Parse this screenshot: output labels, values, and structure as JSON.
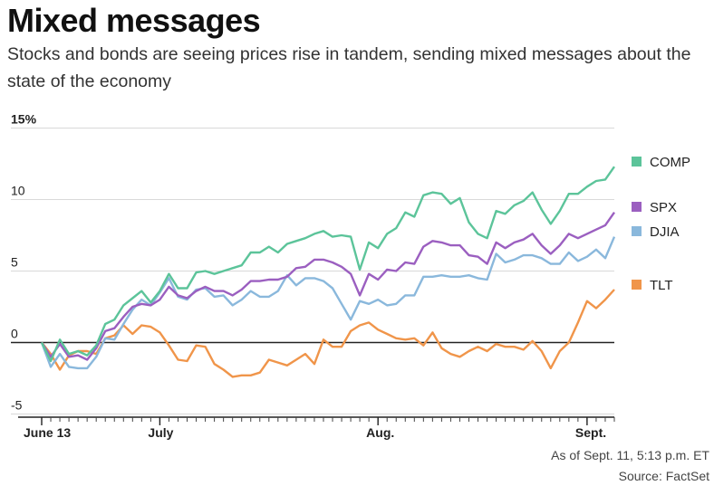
{
  "title": "Mixed messages",
  "subtitle": "Stocks and bonds are seeing prices rise in tandem, sending mixed messages about the state of the economy",
  "as_of": "As of Sept. 11, 5:13 p.m. ET",
  "source": "Source: FactSet",
  "colors": {
    "COMP": "#5cc49a",
    "SPX": "#9b5fc0",
    "DJIA": "#8ab8dc",
    "TLT": "#f0954a"
  },
  "chart_data": {
    "type": "line",
    "ylim": [
      -5,
      15
    ],
    "y_ticks": [
      {
        "value": 15,
        "label": "15%"
      },
      {
        "value": 10,
        "label": "10"
      },
      {
        "value": 5,
        "label": "5"
      },
      {
        "value": 0,
        "label": "0"
      },
      {
        "value": -5,
        "label": "-5"
      }
    ],
    "x_labels": [
      {
        "index": 0,
        "label": "June 13"
      },
      {
        "index": 13,
        "label": "July"
      },
      {
        "index": 37,
        "label": "Aug."
      },
      {
        "index": 60,
        "label": "Sept."
      }
    ],
    "legend": [
      "COMP",
      "SPX",
      "DJIA",
      "TLT"
    ],
    "series": [
      {
        "name": "COMP",
        "values": [
          0,
          -1.3,
          0.2,
          -0.8,
          -0.6,
          -0.9,
          -0.2,
          1.3,
          1.6,
          2.6,
          3.1,
          3.6,
          2.8,
          3.6,
          4.8,
          3.8,
          3.8,
          4.9,
          5.0,
          4.8,
          5.0,
          5.2,
          5.4,
          6.3,
          6.3,
          6.7,
          6.3,
          6.9,
          7.1,
          7.3,
          7.6,
          7.8,
          7.4,
          7.5,
          7.4,
          5.1,
          7.0,
          6.6,
          7.6,
          8.0,
          9.1,
          8.8,
          10.3,
          10.5,
          10.4,
          9.7,
          10.1,
          8.4,
          7.6,
          7.3,
          9.2,
          9.0,
          9.6,
          9.9,
          10.5,
          9.3,
          8.3,
          9.2,
          10.4,
          10.4,
          10.9,
          11.3,
          11.4,
          12.3
        ]
      },
      {
        "name": "SPX",
        "values": [
          0,
          -1.0,
          -0.1,
          -1.0,
          -0.9,
          -1.2,
          -0.4,
          0.8,
          1.0,
          1.8,
          2.5,
          2.7,
          2.6,
          3.0,
          3.9,
          3.3,
          3.1,
          3.6,
          3.9,
          3.6,
          3.6,
          3.3,
          3.7,
          4.3,
          4.3,
          4.4,
          4.4,
          4.6,
          5.2,
          5.3,
          5.8,
          5.8,
          5.6,
          5.3,
          4.8,
          3.3,
          4.8,
          4.4,
          5.1,
          5.0,
          5.6,
          5.5,
          6.7,
          7.1,
          7.0,
          6.8,
          6.8,
          6.1,
          6.0,
          5.5,
          7.0,
          6.6,
          7.0,
          7.2,
          7.6,
          6.8,
          6.2,
          6.8,
          7.6,
          7.3,
          7.6,
          7.9,
          8.2,
          9.1
        ]
      },
      {
        "name": "DJIA",
        "values": [
          0,
          -1.7,
          -0.8,
          -1.7,
          -1.8,
          -1.8,
          -1.0,
          0.3,
          0.2,
          1.3,
          2.3,
          3.0,
          2.6,
          3.5,
          4.5,
          3.2,
          3.0,
          3.7,
          3.8,
          3.2,
          3.3,
          2.6,
          3.0,
          3.6,
          3.2,
          3.2,
          3.6,
          4.7,
          4.0,
          4.5,
          4.5,
          4.3,
          3.8,
          2.7,
          1.6,
          2.9,
          2.7,
          3.0,
          2.6,
          2.7,
          3.3,
          3.3,
          4.6,
          4.6,
          4.7,
          4.6,
          4.6,
          4.7,
          4.5,
          4.4,
          6.2,
          5.6,
          5.8,
          6.1,
          6.1,
          5.9,
          5.5,
          5.5,
          6.3,
          5.7,
          6.0,
          6.5,
          5.9,
          7.4
        ]
      },
      {
        "name": "TLT",
        "values": [
          0,
          -0.8,
          -1.9,
          -0.9,
          -0.6,
          -0.6,
          -0.8,
          0.3,
          0.5,
          1.2,
          0.6,
          1.2,
          1.1,
          0.7,
          -0.2,
          -1.2,
          -1.3,
          -0.2,
          -0.3,
          -1.5,
          -1.9,
          -2.4,
          -2.3,
          -2.3,
          -2.1,
          -1.2,
          -1.4,
          -1.6,
          -1.2,
          -0.8,
          -1.5,
          0.2,
          -0.3,
          -0.3,
          0.8,
          1.2,
          1.4,
          0.9,
          0.6,
          0.3,
          0.2,
          0.3,
          -0.2,
          0.7,
          -0.4,
          -0.8,
          -1.0,
          -0.6,
          -0.3,
          -0.6,
          -0.1,
          -0.3,
          -0.3,
          -0.5,
          0.1,
          -0.6,
          -1.8,
          -0.6,
          0.0,
          1.4,
          2.9,
          2.4,
          3.0,
          3.7
        ]
      }
    ]
  }
}
